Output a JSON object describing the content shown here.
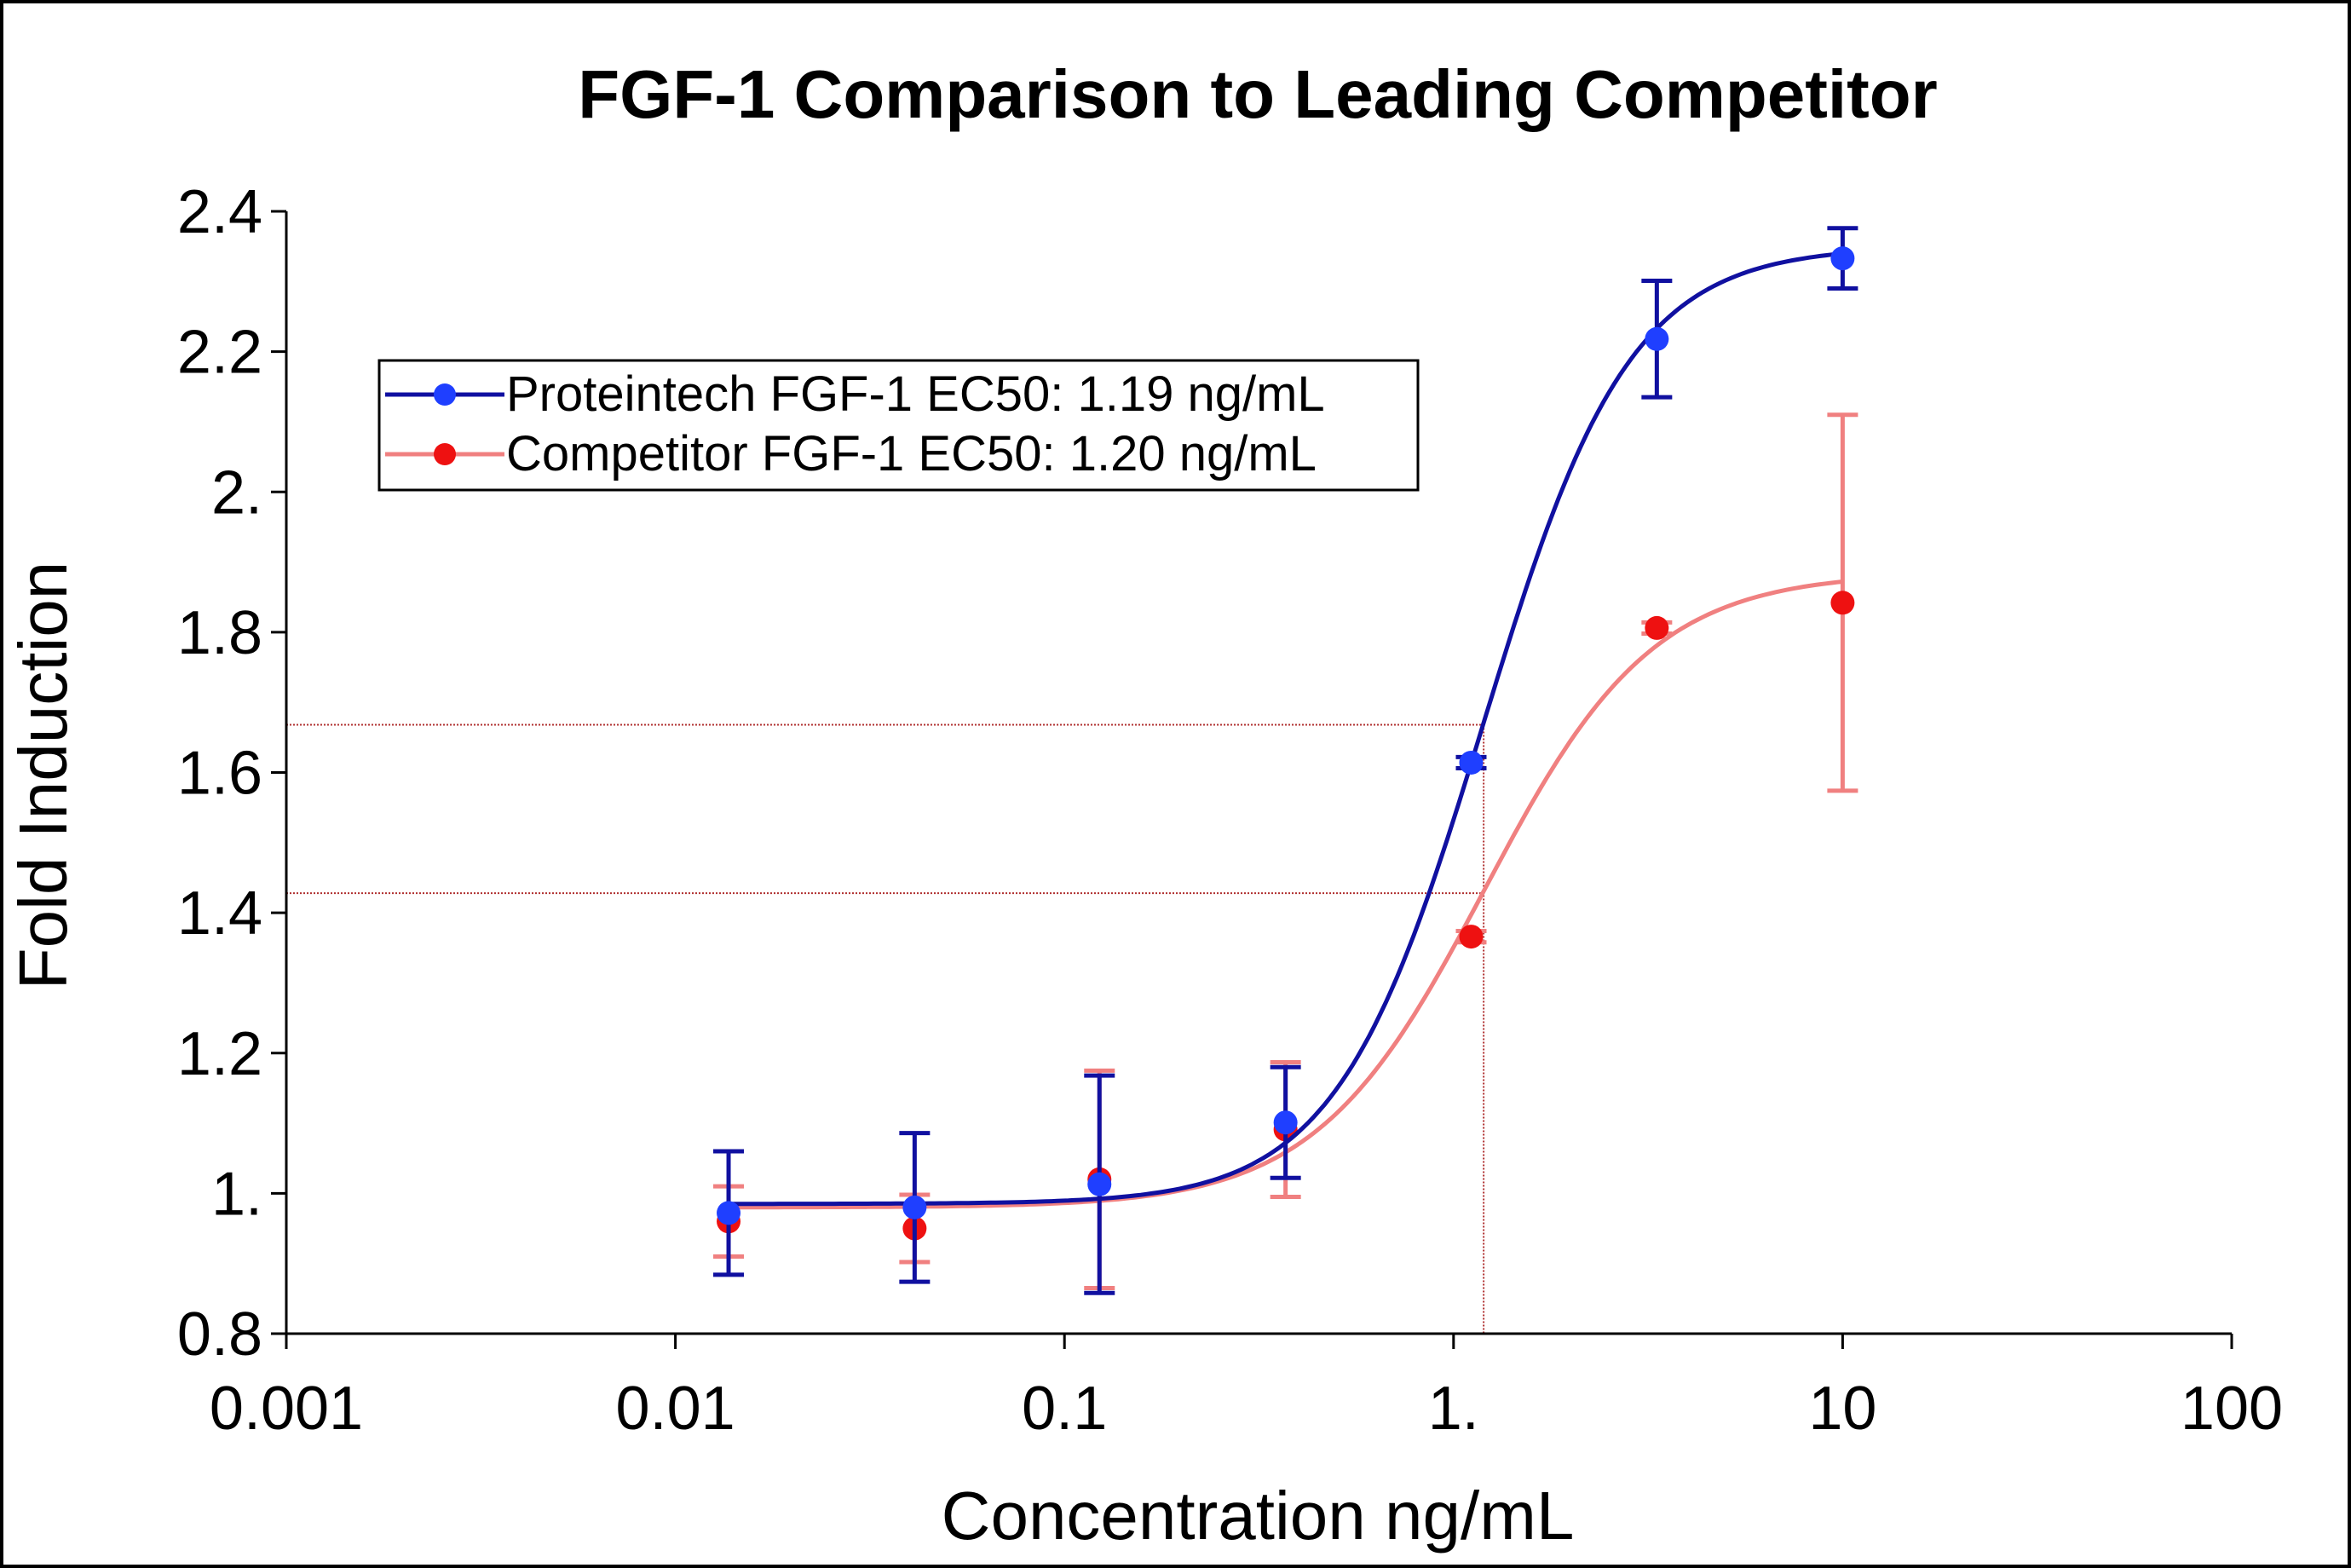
{
  "chart_data": {
    "type": "scatter",
    "title": "FGF-1 Comparison to Leading Competitor",
    "xlabel": "Concentration ng/mL",
    "ylabel": "Fold Induction",
    "x_scale": "log",
    "xlim": [
      0.001,
      100
    ],
    "ylim": [
      0.8,
      2.4
    ],
    "x_ticks": [
      0.001,
      0.01,
      0.1,
      1,
      10,
      100
    ],
    "x_tick_labels": [
      "0.001",
      "0.01",
      "0.1",
      "1.",
      "10",
      "100"
    ],
    "y_ticks": [
      0.8,
      1.0,
      1.2,
      1.4,
      1.6,
      1.8,
      2.0,
      2.2,
      2.4
    ],
    "y_tick_labels": [
      "0.8",
      "1.",
      "1.2",
      "1.4",
      "1.6",
      "1.8",
      "2.",
      "2.2",
      "2.4"
    ],
    "grid": false,
    "legend_position": "top-left",
    "series": [
      {
        "name": "Proteintech FGF-1 EC50: 1.19 ng/mL",
        "color": "#1010a0",
        "marker_color": "#1f3fff",
        "x": [
          0.0137,
          0.0412,
          0.123,
          0.37,
          1.11,
          3.33,
          10.0
        ],
        "y": [
          0.972,
          0.98,
          1.013,
          1.101,
          1.614,
          2.218,
          2.333
        ],
        "error": [
          0.088,
          0.106,
          0.155,
          0.079,
          0.008,
          0.083,
          0.043
        ],
        "fit": {
          "bottom": 0.985,
          "top": 2.35,
          "ec50": 1.19,
          "hill": 2.3
        }
      },
      {
        "name": "Competitor FGF-1 EC50: 1.20 ng/mL",
        "color": "#f08080",
        "marker_color": "#ee1111",
        "x": [
          0.0137,
          0.0412,
          0.123,
          0.37,
          1.11,
          3.33,
          10.0
        ],
        "y": [
          0.96,
          0.95,
          1.02,
          1.091,
          1.366,
          1.806,
          1.842
        ],
        "error": [
          0.05,
          0.048,
          0.155,
          0.096,
          0.008,
          0.008,
          0.268
        ],
        "fit": {
          "bottom": 0.98,
          "top": 1.885,
          "ec50": 1.2,
          "hill": 2.0
        }
      }
    ],
    "reference_lines": {
      "color": "#b03030",
      "ec50_x": 1.195,
      "y_levels": [
        1.668,
        1.428
      ]
    }
  }
}
